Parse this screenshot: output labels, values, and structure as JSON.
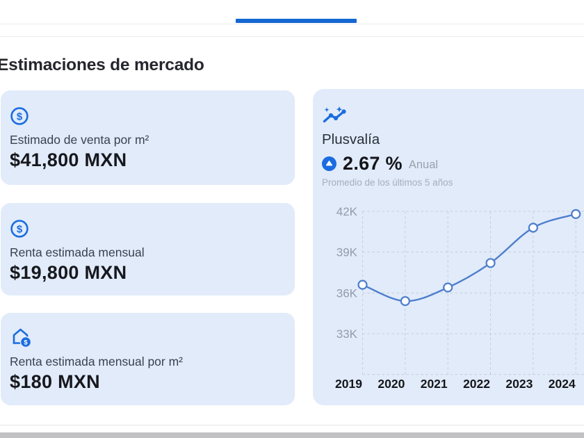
{
  "page": {
    "title": "Estimaciones de mercado"
  },
  "colors": {
    "accent_blue": "#1567D2",
    "icon_blue": "#1A6CE0",
    "card_bg": "#E1EBFA",
    "chart_line": "#4E7ECD",
    "grid": "#C7CDD9",
    "x_label": "#15161B",
    "y_label": "#939CA9"
  },
  "cards": [
    {
      "icon": "circle-dollar-icon",
      "label": "Estimado de venta por m²",
      "value": "$41,800 MXN"
    },
    {
      "icon": "circle-dollar-icon",
      "label": "Renta estimada mensual",
      "value": "$19,800 MXN"
    },
    {
      "icon": "house-dollar-icon",
      "label": "Renta estimada mensual por m²",
      "value": "$180 MXN"
    }
  ],
  "plusvalia": {
    "title": "Plusvalía",
    "percent": "2.67 %",
    "period": "Anual",
    "subtitle": "Promedio de los últimos 5 años"
  },
  "chart_data": {
    "type": "line",
    "title": "Plusvalía",
    "categories": [
      "2019",
      "2020",
      "2021",
      "2022",
      "2023",
      "2024"
    ],
    "values": [
      36600,
      35400,
      36400,
      38200,
      40800,
      41800
    ],
    "ylim": [
      30000,
      42000
    ],
    "y_ticks": [
      {
        "value": 42000,
        "label": "42K"
      },
      {
        "value": 39000,
        "label": "39K"
      },
      {
        "value": 36000,
        "label": "36K"
      },
      {
        "value": 33000,
        "label": "33K"
      },
      {
        "value": 30000,
        "label": ""
      }
    ],
    "grid": "dashed",
    "legend": "none",
    "marker": "open-circle"
  }
}
